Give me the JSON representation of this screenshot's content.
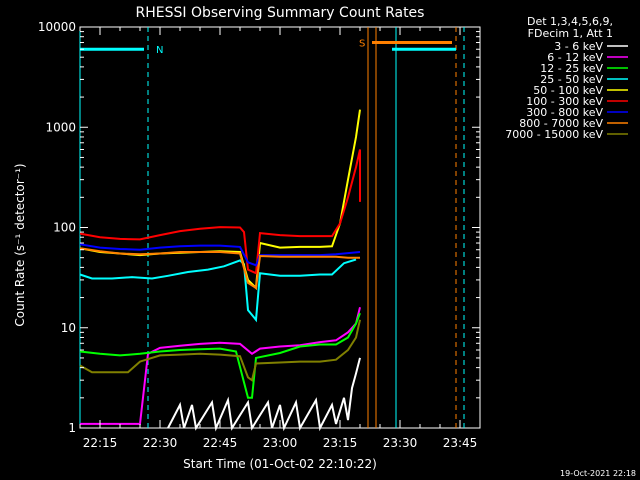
{
  "chart_data": {
    "type": "line",
    "title": "RHESSI Observing Summary Count Rates",
    "xlabel": "Start Time (01-Oct-02 22:10:22)",
    "ylabel": "Count Rate (s⁻¹ detector⁻¹)",
    "y_scale": "log",
    "ylim": [
      1,
      10000
    ],
    "xlim": [
      "22:10",
      "23:50"
    ],
    "x_ticks": [
      "22:15",
      "22:30",
      "22:45",
      "23:00",
      "23:15",
      "23:30",
      "23:45"
    ],
    "y_ticks": [
      "1",
      "10",
      "100",
      "1000",
      "10000"
    ],
    "legend_header": [
      "Det 1,3,4,5,6,9,",
      "FDecim 1, Att 1"
    ],
    "legend_position": "right",
    "timestamp": "19-Oct-2021 22:18",
    "series": [
      {
        "name": "3 - 6 keV",
        "color": "#ffffff",
        "points": [
          [
            "22:32",
            1
          ],
          [
            "22:35",
            1.7
          ],
          [
            "22:36",
            1
          ],
          [
            "22:38",
            1.7
          ],
          [
            "22:39",
            1
          ],
          [
            "22:43",
            1.8
          ],
          [
            "22:44",
            1
          ],
          [
            "22:47",
            1.9
          ],
          [
            "22:48",
            1
          ],
          [
            "22:52",
            1.8
          ],
          [
            "22:53",
            1
          ],
          [
            "22:57",
            1.8
          ],
          [
            "22:58",
            1
          ],
          [
            "23:00",
            1.7
          ],
          [
            "23:01",
            1
          ],
          [
            "23:04",
            1.8
          ],
          [
            "23:05",
            1
          ],
          [
            "23:09",
            1.9
          ],
          [
            "23:10",
            1
          ],
          [
            "23:13",
            1.7
          ],
          [
            "23:14",
            1.1
          ],
          [
            "23:16",
            2
          ],
          [
            "23:17",
            1.2
          ],
          [
            "23:18",
            2.5
          ],
          [
            "23:19",
            3.5
          ],
          [
            "23:20",
            5
          ]
        ]
      },
      {
        "name": "6 - 12 keV",
        "color": "#ff00ff",
        "points": [
          [
            "22:10",
            1.1
          ],
          [
            "22:25",
            1.1
          ],
          [
            "22:27",
            5.5
          ],
          [
            "22:30",
            6.3
          ],
          [
            "22:35",
            6.6
          ],
          [
            "22:40",
            6.9
          ],
          [
            "22:45",
            7.1
          ],
          [
            "22:50",
            6.9
          ],
          [
            "22:53",
            5.5
          ],
          [
            "22:55",
            6.2
          ],
          [
            "23:00",
            6.5
          ],
          [
            "23:05",
            6.7
          ],
          [
            "23:10",
            7.2
          ],
          [
            "23:14",
            7.5
          ],
          [
            "23:17",
            9
          ],
          [
            "23:19",
            11
          ],
          [
            "23:20",
            16
          ]
        ]
      },
      {
        "name": "12 - 25 keV",
        "color": "#00ff00",
        "points": [
          [
            "22:10",
            5.8
          ],
          [
            "22:15",
            5.5
          ],
          [
            "22:20",
            5.3
          ],
          [
            "22:25",
            5.5
          ],
          [
            "22:30",
            5.8
          ],
          [
            "22:35",
            6
          ],
          [
            "22:40",
            6.1
          ],
          [
            "22:45",
            6.2
          ],
          [
            "22:49",
            5.8
          ],
          [
            "22:52",
            2
          ],
          [
            "22:53",
            2
          ],
          [
            "22:54",
            5
          ],
          [
            "23:00",
            5.6
          ],
          [
            "23:05",
            6.5
          ],
          [
            "23:10",
            6.8
          ],
          [
            "23:14",
            6.8
          ],
          [
            "23:17",
            8
          ],
          [
            "23:19",
            11
          ],
          [
            "23:20",
            14
          ]
        ]
      },
      {
        "name": "25 - 50 keV",
        "color": "#00ffff",
        "points": [
          [
            "22:10",
            34
          ],
          [
            "22:13",
            31
          ],
          [
            "22:18",
            31
          ],
          [
            "22:23",
            32
          ],
          [
            "22:28",
            31
          ],
          [
            "22:32",
            33
          ],
          [
            "22:37",
            36
          ],
          [
            "22:42",
            38
          ],
          [
            "22:46",
            41
          ],
          [
            "22:50",
            47
          ],
          [
            "22:51",
            43
          ],
          [
            "22:52",
            15
          ],
          [
            "22:54",
            12
          ],
          [
            "22:55",
            35
          ],
          [
            "23:00",
            33
          ],
          [
            "23:05",
            33
          ],
          [
            "23:10",
            34
          ],
          [
            "23:13",
            34
          ],
          [
            "23:16",
            44
          ],
          [
            "23:19",
            48
          ]
        ]
      },
      {
        "name": "50 - 100 keV",
        "color": "#ffff00",
        "points": [
          [
            "22:10",
            62
          ],
          [
            "22:15",
            57
          ],
          [
            "22:20",
            55
          ],
          [
            "22:25",
            53
          ],
          [
            "22:30",
            55
          ],
          [
            "22:35",
            56
          ],
          [
            "22:40",
            57
          ],
          [
            "22:45",
            58
          ],
          [
            "22:50",
            57
          ],
          [
            "22:52",
            30
          ],
          [
            "22:54",
            25
          ],
          [
            "22:55",
            70
          ],
          [
            "23:00",
            63
          ],
          [
            "23:05",
            64
          ],
          [
            "23:10",
            64
          ],
          [
            "23:13",
            65
          ],
          [
            "23:15",
            110
          ],
          [
            "23:17",
            300
          ],
          [
            "23:19",
            800
          ],
          [
            "23:20",
            1500
          ]
        ]
      },
      {
        "name": "100 - 300 keV",
        "color": "#ff0000",
        "points": [
          [
            "22:10",
            87
          ],
          [
            "22:15",
            80
          ],
          [
            "22:20",
            77
          ],
          [
            "22:25",
            76
          ],
          [
            "22:30",
            84
          ],
          [
            "22:35",
            92
          ],
          [
            "22:40",
            97
          ],
          [
            "22:45",
            101
          ],
          [
            "22:50",
            100
          ],
          [
            "22:51",
            90
          ],
          [
            "22:52",
            38
          ],
          [
            "22:54",
            35
          ],
          [
            "22:55",
            88
          ],
          [
            "23:00",
            84
          ],
          [
            "23:05",
            82
          ],
          [
            "23:10",
            82
          ],
          [
            "23:13",
            82
          ],
          [
            "23:15",
            110
          ],
          [
            "23:17",
            200
          ],
          [
            "23:19",
            400
          ],
          [
            "23:20",
            600
          ],
          [
            "23:20",
            180
          ]
        ]
      },
      {
        "name": "300 - 800 keV",
        "color": "#0000ff",
        "points": [
          [
            "22:10",
            68
          ],
          [
            "22:15",
            63
          ],
          [
            "22:20",
            61
          ],
          [
            "22:25",
            60
          ],
          [
            "22:30",
            63
          ],
          [
            "22:35",
            65
          ],
          [
            "22:40",
            66
          ],
          [
            "22:45",
            66
          ],
          [
            "22:50",
            64
          ],
          [
            "22:52",
            45
          ],
          [
            "22:54",
            42
          ],
          [
            "22:55",
            53
          ],
          [
            "23:00",
            53
          ],
          [
            "23:05",
            53
          ],
          [
            "23:10",
            53
          ],
          [
            "23:14",
            54
          ],
          [
            "23:16",
            55
          ],
          [
            "23:18",
            56
          ],
          [
            "23:20",
            57
          ]
        ]
      },
      {
        "name": "800 - 7000 keV",
        "color": "#ff8000",
        "points": [
          [
            "22:10",
            62
          ],
          [
            "22:15",
            58
          ],
          [
            "22:20",
            55
          ],
          [
            "22:25",
            54
          ],
          [
            "22:30",
            55
          ],
          [
            "22:35",
            57
          ],
          [
            "22:40",
            57
          ],
          [
            "22:45",
            57
          ],
          [
            "22:50",
            55
          ],
          [
            "22:52",
            28
          ],
          [
            "22:54",
            25
          ],
          [
            "22:55",
            52
          ],
          [
            "23:00",
            51
          ],
          [
            "23:05",
            51
          ],
          [
            "23:10",
            51
          ],
          [
            "23:14",
            51
          ],
          [
            "23:17",
            50
          ],
          [
            "23:20",
            50
          ]
        ]
      },
      {
        "name": "7000 - 15000 keV",
        "color": "#808000",
        "points": [
          [
            "22:10",
            4.2
          ],
          [
            "22:13",
            3.6
          ],
          [
            "22:18",
            3.6
          ],
          [
            "22:22",
            3.6
          ],
          [
            "22:25",
            4.6
          ],
          [
            "22:30",
            5.3
          ],
          [
            "22:35",
            5.4
          ],
          [
            "22:40",
            5.5
          ],
          [
            "22:45",
            5.4
          ],
          [
            "22:50",
            5.2
          ],
          [
            "22:52",
            3.2
          ],
          [
            "22:53",
            3
          ],
          [
            "22:54",
            4.4
          ],
          [
            "23:00",
            4.5
          ],
          [
            "23:05",
            4.6
          ],
          [
            "23:10",
            4.6
          ],
          [
            "23:14",
            4.8
          ],
          [
            "23:17",
            6
          ],
          [
            "23:19",
            8
          ],
          [
            "23:20",
            12
          ]
        ]
      }
    ],
    "annotations": [
      {
        "label": "N",
        "color": "#00ffff",
        "start": "22:10",
        "end": "22:26",
        "level": 6000
      },
      {
        "label": "S",
        "color": "#ff8000",
        "start": "23:23",
        "end": "23:43",
        "level": 7000
      },
      {
        "label": "",
        "color": "#00ffff",
        "start": "23:28",
        "end": "23:44",
        "level": 6000
      }
    ],
    "vertical_lines": [
      {
        "time": "22:10",
        "color": "#00ffff",
        "style": "solid"
      },
      {
        "time": "22:27",
        "color": "#00ffff",
        "style": "dashed"
      },
      {
        "time": "23:22",
        "color": "#ff8000",
        "style": "solid"
      },
      {
        "time": "23:24",
        "color": "#ff8000",
        "style": "solid"
      },
      {
        "time": "23:29",
        "color": "#00ffff",
        "style": "solid"
      },
      {
        "time": "23:44",
        "color": "#ff8000",
        "style": "dashed"
      },
      {
        "time": "23:46",
        "color": "#00ffff",
        "style": "dashed"
      }
    ]
  }
}
